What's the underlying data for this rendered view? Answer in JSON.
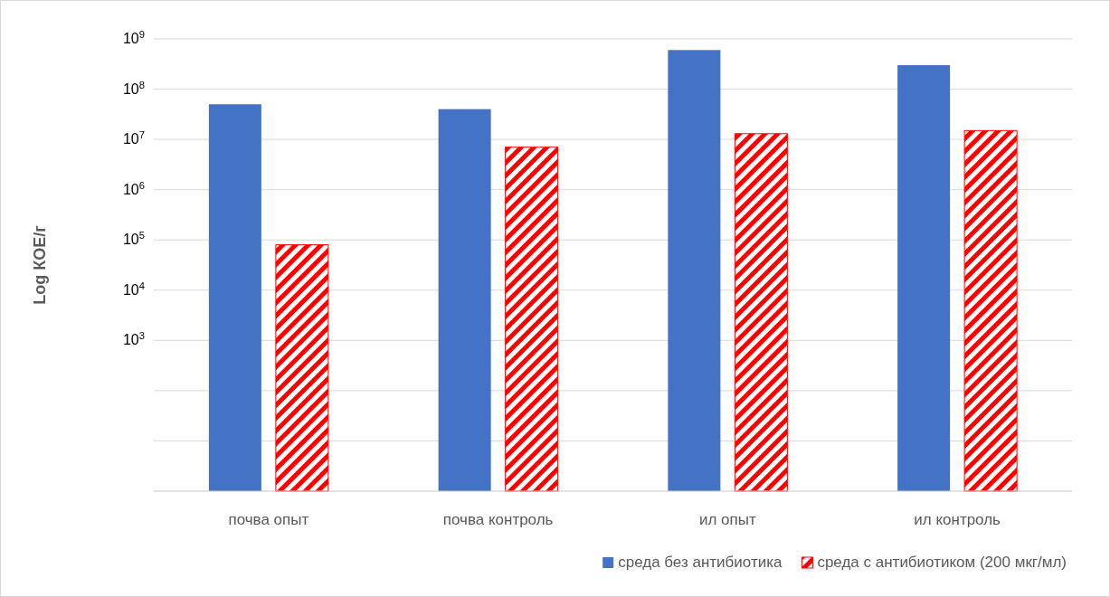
{
  "chart_data": {
    "type": "bar",
    "ylabel": "Log КОЕ/г",
    "categories": [
      "почва опыт",
      "почва контроль",
      "ил опыт",
      "ил контроль"
    ],
    "series": [
      {
        "name": "среда без антибиотика",
        "color": "#4472c4",
        "values": [
          50000000,
          40000000,
          600000000,
          300000000
        ]
      },
      {
        "name": "среда с антибиотиком (200 мкг/мл)",
        "color": "#ff0000",
        "values": [
          80000,
          7000000,
          13000000,
          15000000
        ]
      }
    ],
    "log": true,
    "ylim": [
      1,
      1000000000
    ],
    "yticks": [
      {
        "value": 1,
        "label": null
      },
      {
        "value": 10,
        "label": null
      },
      {
        "value": 100,
        "label": null
      },
      {
        "value": 1000,
        "label": "10$^{3}$"
      },
      {
        "value": 10000,
        "label": "10$^{4}$"
      },
      {
        "value": 100000,
        "label": "10$^{5}$"
      },
      {
        "value": 1000000,
        "label": "10$^{6}$"
      },
      {
        "value": 10000000,
        "label": "10$^{7}$"
      },
      {
        "value": 100000000,
        "label": "10$^{8}$"
      },
      {
        "value": 1000000000,
        "label": "10$^{9}$"
      }
    ],
    "grid": "y",
    "legend": "bottom right"
  }
}
